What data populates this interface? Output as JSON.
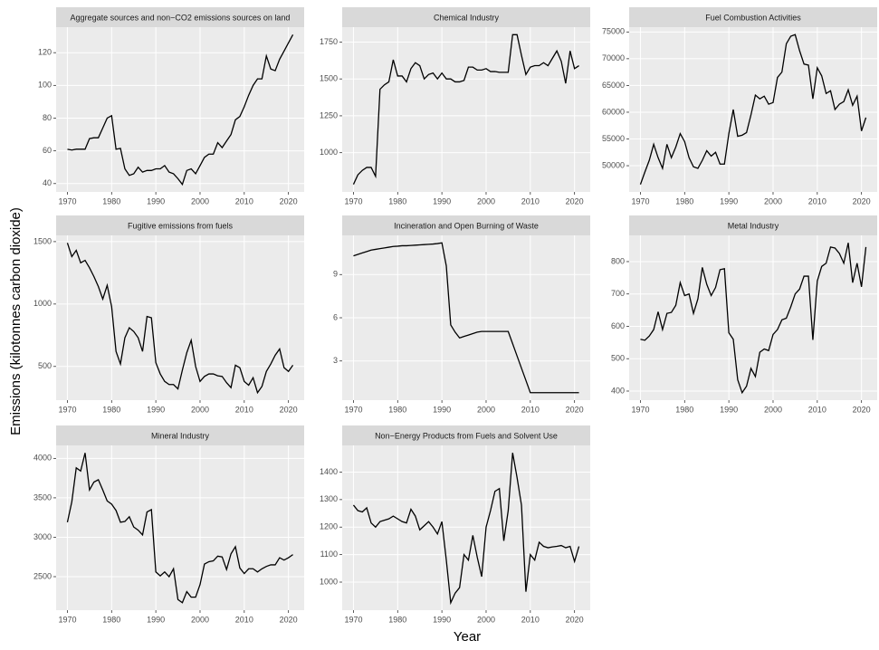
{
  "axis_labels": {
    "x": "Year",
    "y": "Emissions (kilotonnes carbon dioxide)"
  },
  "chart_data": [
    {
      "type": "line",
      "title": "Aggregate sources and non−CO2 emissions sources on land",
      "color": "#000000",
      "grid": true,
      "x": [
        1970,
        1971,
        1972,
        1973,
        1974,
        1975,
        1976,
        1977,
        1978,
        1979,
        1980,
        1981,
        1982,
        1983,
        1984,
        1985,
        1986,
        1987,
        1988,
        1989,
        1990,
        1991,
        1992,
        1993,
        1994,
        1995,
        1996,
        1997,
        1998,
        1999,
        2000,
        2001,
        2002,
        2003,
        2004,
        2005,
        2006,
        2007,
        2008,
        2009,
        2010,
        2011,
        2012,
        2013,
        2014,
        2015,
        2016,
        2017,
        2018,
        2019,
        2020,
        2021
      ],
      "values": [
        61,
        60.5,
        61,
        61,
        61,
        67.5,
        68,
        68,
        74,
        80,
        81.5,
        61,
        61.5,
        49,
        45,
        46,
        50,
        47,
        48,
        48,
        49,
        49,
        51,
        47,
        46,
        43,
        39.5,
        48,
        49,
        46,
        51,
        56,
        58,
        58,
        65,
        62,
        66,
        70,
        79,
        81,
        87,
        94,
        100,
        104,
        104,
        118,
        110,
        109,
        116,
        121,
        126,
        131
      ],
      "xlim": [
        1967.45,
        2023.55
      ],
      "xticks": [
        1970,
        1980,
        1990,
        2000,
        2010,
        2020
      ],
      "ylim": [
        34.9,
        135.6
      ],
      "yticks": [
        40,
        60,
        80,
        100,
        120
      ]
    },
    {
      "type": "line",
      "title": "Chemical Industry",
      "color": "#000000",
      "grid": true,
      "x": [
        1970,
        1971,
        1972,
        1973,
        1974,
        1975,
        1976,
        1977,
        1978,
        1979,
        1980,
        1981,
        1982,
        1983,
        1984,
        1985,
        1986,
        1987,
        1988,
        1989,
        1990,
        1991,
        1992,
        1993,
        1994,
        1995,
        1996,
        1997,
        1998,
        1999,
        2000,
        2001,
        2002,
        2003,
        2004,
        2005,
        2006,
        2007,
        2008,
        2009,
        2010,
        2011,
        2012,
        2013,
        2014,
        2015,
        2016,
        2017,
        2018,
        2019,
        2020,
        2021
      ],
      "values": [
        785,
        850,
        880,
        900,
        900,
        840,
        1430,
        1460,
        1480,
        1630,
        1520,
        1520,
        1480,
        1570,
        1610,
        1590,
        1500,
        1530,
        1540,
        1500,
        1540,
        1500,
        1500,
        1480,
        1480,
        1490,
        1580,
        1580,
        1560,
        1560,
        1570,
        1550,
        1550,
        1545,
        1545,
        1545,
        1800,
        1800,
        1660,
        1530,
        1580,
        1590,
        1590,
        1610,
        1590,
        1640,
        1690,
        1620,
        1470,
        1690,
        1570,
        1590
      ],
      "xlim": [
        1967.45,
        2023.55
      ],
      "xticks": [
        1970,
        1980,
        1990,
        2000,
        2010,
        2020
      ],
      "ylim": [
        734,
        1851
      ],
      "yticks": [
        1000,
        1250,
        1500,
        1750
      ]
    },
    {
      "type": "line",
      "title": "Fuel Combustion Activities",
      "color": "#000000",
      "grid": true,
      "x": [
        1970,
        1971,
        1972,
        1973,
        1974,
        1975,
        1976,
        1977,
        1978,
        1979,
        1980,
        1981,
        1982,
        1983,
        1984,
        1985,
        1986,
        1987,
        1988,
        1989,
        1990,
        1991,
        1992,
        1993,
        1994,
        1995,
        1996,
        1997,
        1998,
        1999,
        2000,
        2001,
        2002,
        2003,
        2004,
        2005,
        2006,
        2007,
        2008,
        2009,
        2010,
        2011,
        2012,
        2013,
        2014,
        2015,
        2016,
        2017,
        2018,
        2019,
        2020,
        2021
      ],
      "values": [
        46500,
        48800,
        51000,
        54000,
        51500,
        49500,
        54000,
        51500,
        53500,
        56000,
        54500,
        51500,
        49800,
        49500,
        51000,
        52800,
        51800,
        52500,
        50300,
        50300,
        56000,
        60500,
        55500,
        55700,
        56200,
        59500,
        63200,
        62500,
        63000,
        61500,
        61800,
        66500,
        67500,
        72800,
        74200,
        74500,
        71500,
        69000,
        68800,
        62500,
        68300,
        66800,
        63500,
        64000,
        60500,
        61500,
        62000,
        64200,
        61300,
        63000,
        56500,
        59000
      ],
      "xlim": [
        1967.45,
        2023.55
      ],
      "xticks": [
        1970,
        1980,
        1990,
        2000,
        2010,
        2020
      ],
      "ylim": [
        45100,
        75900
      ],
      "yticks": [
        50000,
        55000,
        60000,
        65000,
        70000,
        75000
      ]
    },
    {
      "type": "line",
      "title": "Fugitive emissions from fuels",
      "color": "#000000",
      "grid": true,
      "x": [
        1970,
        1971,
        1972,
        1973,
        1974,
        1975,
        1976,
        1977,
        1978,
        1979,
        1980,
        1981,
        1982,
        1983,
        1984,
        1985,
        1986,
        1987,
        1988,
        1989,
        1990,
        1991,
        1992,
        1993,
        1994,
        1995,
        1996,
        1997,
        1998,
        1999,
        2000,
        2001,
        2002,
        2003,
        2004,
        2005,
        2006,
        2007,
        2008,
        2009,
        2010,
        2011,
        2012,
        2013,
        2014,
        2015,
        2016,
        2017,
        2018,
        2019,
        2020,
        2021
      ],
      "values": [
        1490,
        1380,
        1430,
        1330,
        1350,
        1290,
        1220,
        1140,
        1040,
        1150,
        980,
        620,
        520,
        730,
        810,
        780,
        730,
        620,
        900,
        890,
        530,
        440,
        380,
        355,
        355,
        320,
        470,
        610,
        710,
        500,
        380,
        420,
        440,
        440,
        425,
        420,
        370,
        330,
        510,
        490,
        380,
        350,
        410,
        290,
        340,
        460,
        520,
        590,
        640,
        490,
        460,
        510
      ],
      "xlim": [
        1967.45,
        2023.55
      ],
      "xticks": [
        1970,
        1980,
        1990,
        2000,
        2010,
        2020
      ],
      "ylim": [
        230,
        1550
      ],
      "yticks": [
        500,
        1000,
        1500
      ]
    },
    {
      "type": "line",
      "title": "Incineration and Open Burning of Waste",
      "color": "#000000",
      "grid": true,
      "x": [
        1970,
        1971,
        1972,
        1973,
        1974,
        1975,
        1976,
        1977,
        1978,
        1979,
        1980,
        1981,
        1982,
        1983,
        1984,
        1985,
        1986,
        1987,
        1988,
        1989,
        1990,
        1991,
        1992,
        1993,
        1994,
        1995,
        1996,
        1997,
        1998,
        1999,
        2000,
        2001,
        2002,
        2003,
        2004,
        2005,
        2006,
        2007,
        2008,
        2009,
        2010,
        2011,
        2012,
        2013,
        2014,
        2015,
        2016,
        2017,
        2018,
        2019,
        2020,
        2021
      ],
      "values": [
        10.3,
        10.4,
        10.5,
        10.6,
        10.7,
        10.75,
        10.8,
        10.85,
        10.9,
        10.95,
        10.97,
        11.0,
        11.0,
        11.02,
        11.04,
        11.06,
        11.08,
        11.1,
        11.12,
        11.15,
        11.2,
        9.6,
        5.5,
        5.0,
        4.6,
        4.7,
        4.8,
        4.9,
        5.0,
        5.05,
        5.05,
        5.05,
        5.05,
        5.05,
        5.05,
        5.05,
        4.2,
        3.35,
        2.5,
        1.65,
        0.8,
        0.8,
        0.8,
        0.8,
        0.8,
        0.8,
        0.8,
        0.8,
        0.8,
        0.8,
        0.8,
        0.8
      ],
      "xlim": [
        1967.45,
        2023.55
      ],
      "xticks": [
        1970,
        1980,
        1990,
        2000,
        2010,
        2020
      ],
      "ylim": [
        0.28,
        11.72
      ],
      "yticks": [
        3,
        6,
        9
      ]
    },
    {
      "type": "line",
      "title": "Metal Industry",
      "color": "#000000",
      "grid": true,
      "x": [
        1970,
        1971,
        1972,
        1973,
        1974,
        1975,
        1976,
        1977,
        1978,
        1979,
        1980,
        1981,
        1982,
        1983,
        1984,
        1985,
        1986,
        1987,
        1988,
        1989,
        1990,
        1991,
        1992,
        1993,
        1994,
        1995,
        1996,
        1997,
        1998,
        1999,
        2000,
        2001,
        2002,
        2003,
        2004,
        2005,
        2006,
        2007,
        2008,
        2009,
        2010,
        2011,
        2012,
        2013,
        2014,
        2015,
        2016,
        2017,
        2018,
        2019,
        2020,
        2021
      ],
      "values": [
        560,
        557,
        570,
        590,
        645,
        590,
        640,
        643,
        665,
        735,
        695,
        700,
        640,
        685,
        782,
        730,
        695,
        720,
        775,
        778,
        580,
        560,
        435,
        395,
        415,
        470,
        445,
        520,
        530,
        525,
        575,
        590,
        620,
        625,
        660,
        700,
        715,
        755,
        755,
        558,
        740,
        785,
        795,
        845,
        842,
        825,
        795,
        858,
        735,
        795,
        722,
        845
      ],
      "xlim": [
        1967.45,
        2023.55
      ],
      "xticks": [
        1970,
        1980,
        1990,
        2000,
        2010,
        2020
      ],
      "ylim": [
        372,
        881
      ],
      "yticks": [
        400,
        500,
        600,
        700,
        800
      ]
    },
    {
      "type": "line",
      "title": "Mineral Industry",
      "color": "#000000",
      "grid": true,
      "x": [
        1970,
        1971,
        1972,
        1973,
        1974,
        1975,
        1976,
        1977,
        1978,
        1979,
        1980,
        1981,
        1982,
        1983,
        1984,
        1985,
        1986,
        1987,
        1988,
        1989,
        1990,
        1991,
        1992,
        1993,
        1994,
        1995,
        1996,
        1997,
        1998,
        1999,
        2000,
        2001,
        2002,
        2003,
        2004,
        2005,
        2006,
        2007,
        2008,
        2009,
        2010,
        2011,
        2012,
        2013,
        2014,
        2015,
        2016,
        2017,
        2018,
        2019,
        2020,
        2021
      ],
      "values": [
        3190,
        3450,
        3880,
        3840,
        4070,
        3600,
        3700,
        3730,
        3600,
        3460,
        3420,
        3340,
        3190,
        3200,
        3260,
        3130,
        3090,
        3030,
        3320,
        3350,
        2560,
        2510,
        2560,
        2500,
        2600,
        2210,
        2170,
        2310,
        2240,
        2240,
        2400,
        2660,
        2690,
        2700,
        2760,
        2750,
        2590,
        2790,
        2880,
        2610,
        2540,
        2600,
        2600,
        2560,
        2600,
        2630,
        2650,
        2650,
        2740,
        2710,
        2740,
        2780
      ],
      "xlim": [
        1967.45,
        2023.55
      ],
      "xticks": [
        1970,
        1980,
        1990,
        2000,
        2010,
        2020
      ],
      "ylim": [
        2075,
        4165
      ],
      "yticks": [
        2500,
        3000,
        3500,
        4000
      ]
    },
    {
      "type": "line",
      "title": "Non−Energy Products from Fuels and Solvent Use",
      "color": "#000000",
      "grid": true,
      "x": [
        1970,
        1971,
        1972,
        1973,
        1974,
        1975,
        1976,
        1977,
        1978,
        1979,
        1980,
        1981,
        1982,
        1983,
        1984,
        1985,
        1986,
        1987,
        1988,
        1989,
        1990,
        1991,
        1992,
        1993,
        1994,
        1995,
        1996,
        1997,
        1998,
        1999,
        2000,
        2001,
        2002,
        2003,
        2004,
        2005,
        2006,
        2007,
        2008,
        2009,
        2010,
        2011,
        2012,
        2013,
        2014,
        2015,
        2016,
        2017,
        2018,
        2019,
        2020,
        2021
      ],
      "values": [
        1280,
        1260,
        1255,
        1270,
        1215,
        1200,
        1220,
        1225,
        1230,
        1240,
        1230,
        1220,
        1215,
        1265,
        1240,
        1190,
        1205,
        1220,
        1200,
        1175,
        1220,
        1080,
        925,
        960,
        980,
        1100,
        1080,
        1170,
        1090,
        1020,
        1200,
        1260,
        1330,
        1340,
        1150,
        1260,
        1470,
        1380,
        1280,
        965,
        1100,
        1080,
        1145,
        1130,
        1125,
        1128,
        1130,
        1133,
        1125,
        1130,
        1075,
        1130
      ],
      "xlim": [
        1967.45,
        2023.55
      ],
      "xticks": [
        1970,
        1980,
        1990,
        2000,
        2010,
        2020
      ],
      "ylim": [
        898,
        1497
      ],
      "yticks": [
        1000,
        1100,
        1200,
        1300,
        1400
      ]
    }
  ]
}
